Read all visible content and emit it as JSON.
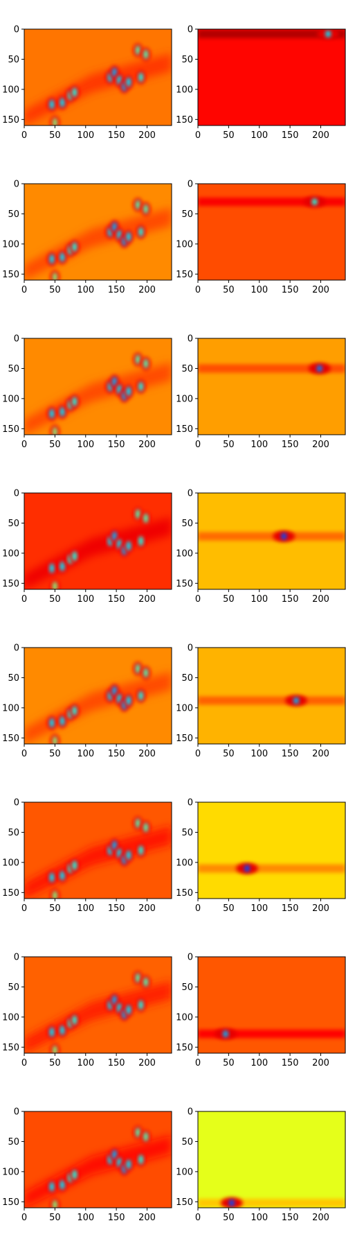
{
  "chart_data": {
    "type": "heatmap",
    "colormap": "jet",
    "image_shape": [
      160,
      240
    ],
    "layout": {
      "rows": 8,
      "cols": 2
    },
    "xlim": [
      0,
      240
    ],
    "ylim": [
      160,
      0
    ],
    "x_ticks": [
      0,
      50,
      100,
      150,
      200
    ],
    "y_ticks": [
      0,
      50,
      100,
      150
    ],
    "x_tick_labels": [
      "0",
      "50",
      "100",
      "150",
      "200"
    ],
    "y_tick_labels": [
      "0",
      "50",
      "100",
      "150"
    ],
    "left_backgrounds": [
      0.76,
      0.74,
      0.74,
      0.83,
      0.74,
      0.79,
      0.78,
      0.8
    ],
    "right_backgrounds": [
      0.87,
      0.8,
      0.72,
      0.69,
      0.7,
      0.66,
      0.79,
      0.6
    ],
    "left_blobs": [
      {
        "x": 140,
        "y": 80,
        "v": 0.35
      },
      {
        "x": 147,
        "y": 72,
        "v": 0.3
      },
      {
        "x": 155,
        "y": 85,
        "v": 0.35
      },
      {
        "x": 163,
        "y": 95,
        "v": 0.3
      },
      {
        "x": 170,
        "y": 88,
        "v": 0.35
      },
      {
        "x": 190,
        "y": 80,
        "v": 0.4
      },
      {
        "x": 185,
        "y": 35,
        "v": 0.45
      },
      {
        "x": 198,
        "y": 42,
        "v": 0.45
      },
      {
        "x": 45,
        "y": 125,
        "v": 0.35
      },
      {
        "x": 62,
        "y": 122,
        "v": 0.35
      },
      {
        "x": 75,
        "y": 110,
        "v": 0.4
      },
      {
        "x": 82,
        "y": 105,
        "v": 0.4
      },
      {
        "x": 50,
        "y": 155,
        "v": 0.5
      }
    ],
    "right_bands": [
      {
        "y": 8,
        "spot_x": 212,
        "spot_v": 0.35
      },
      {
        "y": 30,
        "spot_x": 190,
        "spot_v": 0.4
      },
      {
        "y": 50,
        "spot_x": 198,
        "spot_v": 0.25
      },
      {
        "y": 72,
        "spot_x": 140,
        "spot_v": 0.2
      },
      {
        "y": 88,
        "spot_x": 160,
        "spot_v": 0.3
      },
      {
        "y": 110,
        "spot_x": 80,
        "spot_v": 0.2
      },
      {
        "y": 128,
        "spot_x": 45,
        "spot_v": 0.3
      },
      {
        "y": 152,
        "spot_x": 55,
        "spot_v": 0.2
      }
    ]
  }
}
